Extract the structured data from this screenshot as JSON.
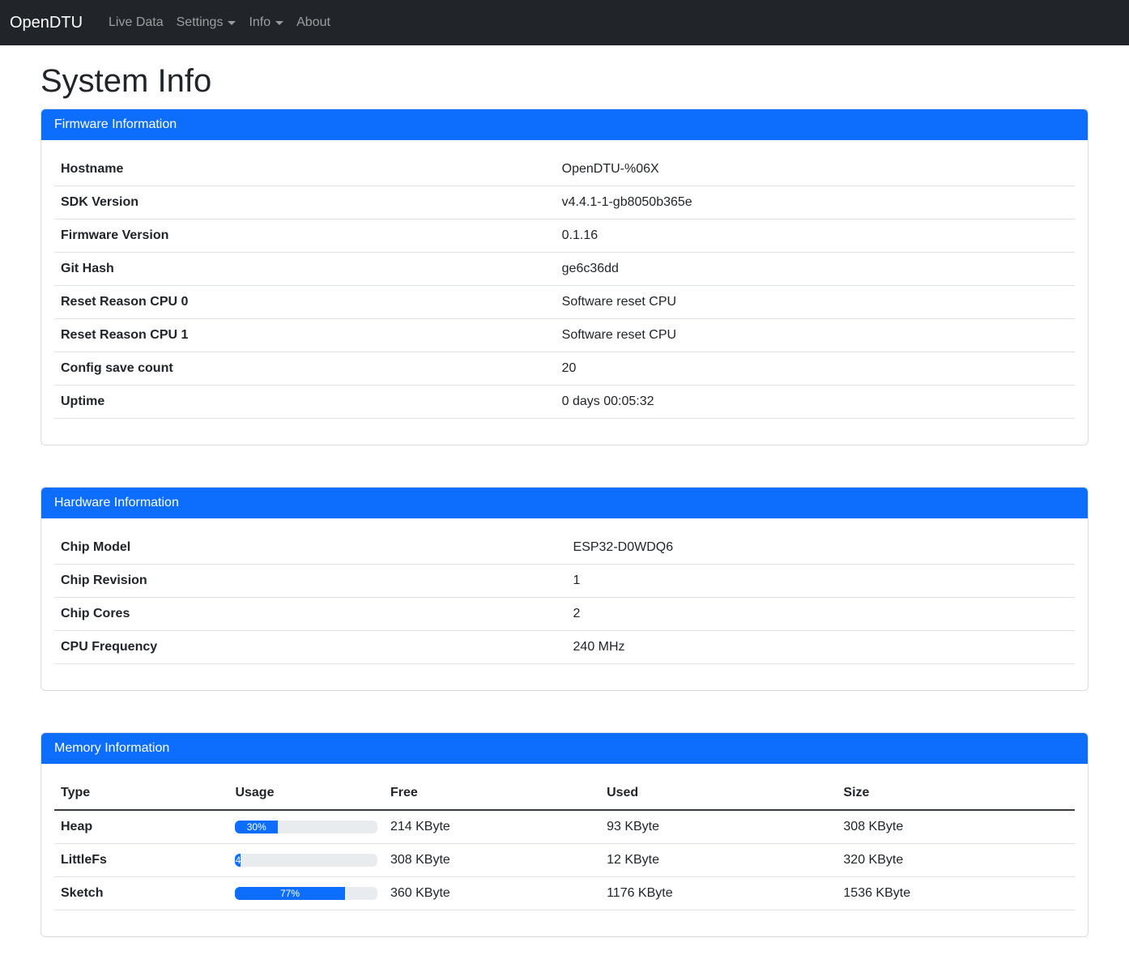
{
  "navbar": {
    "brand": "OpenDTU",
    "items": [
      {
        "label": "Live Data",
        "has_dropdown": false
      },
      {
        "label": "Settings",
        "has_dropdown": true
      },
      {
        "label": "Info",
        "has_dropdown": true
      },
      {
        "label": "About",
        "has_dropdown": false
      }
    ]
  },
  "page_title": "System Info",
  "colors": {
    "primary": "#0d6efd",
    "navbar_bg": "#212529",
    "table_border": "#dee2e6",
    "progress_track": "#e9ecef",
    "text": "#212529"
  },
  "cards": {
    "firmware": {
      "title": "Firmware Information",
      "rows": [
        {
          "label": "Hostname",
          "value": "OpenDTU-%06X"
        },
        {
          "label": "SDK Version",
          "value": "v4.4.1-1-gb8050b365e"
        },
        {
          "label": "Firmware Version",
          "value": "0.1.16"
        },
        {
          "label": "Git Hash",
          "value": "ge6c36dd"
        },
        {
          "label": "Reset Reason CPU 0",
          "value": "Software reset CPU"
        },
        {
          "label": "Reset Reason CPU 1",
          "value": "Software reset CPU"
        },
        {
          "label": "Config save count",
          "value": "20"
        },
        {
          "label": "Uptime",
          "value": "0 days 00:05:32"
        }
      ]
    },
    "hardware": {
      "title": "Hardware Information",
      "rows": [
        {
          "label": "Chip Model",
          "value": "ESP32-D0WDQ6"
        },
        {
          "label": "Chip Revision",
          "value": "1"
        },
        {
          "label": "Chip Cores",
          "value": "2"
        },
        {
          "label": "CPU Frequency",
          "value": "240 MHz"
        }
      ]
    },
    "memory": {
      "title": "Memory Information",
      "columns": [
        "Type",
        "Usage",
        "Free",
        "Used",
        "Size"
      ],
      "rows": [
        {
          "type": "Heap",
          "usage_percent": 30,
          "usage_label": "30%",
          "free": "214 KByte",
          "used": "93 KByte",
          "size": "308 KByte"
        },
        {
          "type": "LittleFs",
          "usage_percent": 4,
          "usage_label": "4",
          "free": "308 KByte",
          "used": "12 KByte",
          "size": "320 KByte"
        },
        {
          "type": "Sketch",
          "usage_percent": 77,
          "usage_label": "77%",
          "free": "360 KByte",
          "used": "1176 KByte",
          "size": "1536 KByte"
        }
      ]
    }
  }
}
